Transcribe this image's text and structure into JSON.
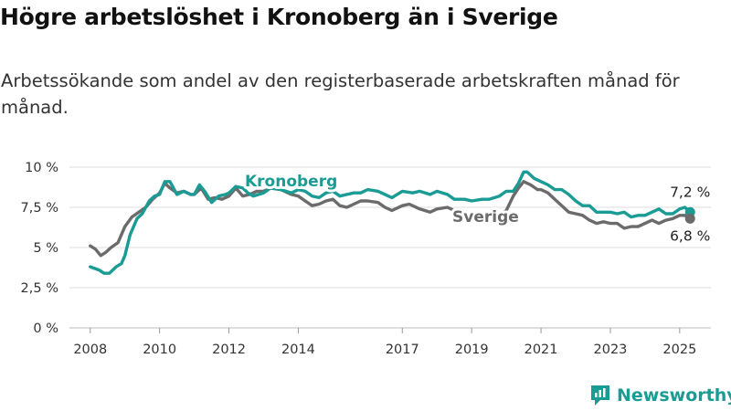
{
  "title": "Högre arbetslöshet i Kronoberg än i Sverige",
  "subtitle": "Arbetssökande som andel av den registerbaserade arbetskraften månad för månad.",
  "logo": {
    "text": "Newsworthy",
    "icon": "newsworthy-logo-icon"
  },
  "colors": {
    "kronoberg": "#1a9b94",
    "sverige": "#6b6b6b",
    "grid": "#dddddd"
  },
  "chart_data": {
    "type": "line",
    "ylim": [
      0,
      10
    ],
    "xlim": [
      2007.4,
      2025.9
    ],
    "y_ticks": [
      {
        "value": 0,
        "label": "0 %"
      },
      {
        "value": 2.5,
        "label": "2,5 %"
      },
      {
        "value": 5,
        "label": "5 %"
      },
      {
        "value": 7.5,
        "label": "7,5 %"
      },
      {
        "value": 10,
        "label": "10 %"
      }
    ],
    "x_ticks": [
      {
        "value": 2008,
        "label": "2008"
      },
      {
        "value": 2010,
        "label": "2010"
      },
      {
        "value": 2012,
        "label": "2012"
      },
      {
        "value": 2014,
        "label": "2014"
      },
      {
        "value": 2017,
        "label": "2017"
      },
      {
        "value": 2019,
        "label": "2019"
      },
      {
        "value": 2021,
        "label": "2021"
      },
      {
        "value": 2023,
        "label": "2023"
      },
      {
        "value": 2025,
        "label": "2025"
      }
    ],
    "grid": true,
    "series": [
      {
        "name": "Kronoberg",
        "color": "#1a9b94",
        "end_label": "7,2 %",
        "x": [
          2008.0,
          2008.25,
          2008.4,
          2008.55,
          2008.75,
          2008.9,
          2009.0,
          2009.15,
          2009.35,
          2009.5,
          2009.7,
          2009.85,
          2010.0,
          2010.15,
          2010.3,
          2010.5,
          2010.7,
          2010.9,
          2011.0,
          2011.15,
          2011.3,
          2011.5,
          2011.7,
          2011.9,
          2012.0,
          2012.2,
          2012.4,
          2012.55,
          2012.7,
          2013.0,
          2013.2,
          2013.5,
          2013.8,
          2014.0,
          2014.2,
          2014.4,
          2014.6,
          2014.8,
          2015.0,
          2015.2,
          2015.4,
          2015.6,
          2015.8,
          2016.0,
          2016.3,
          2016.5,
          2016.7,
          2017.0,
          2017.3,
          2017.5,
          2017.8,
          2018.0,
          2018.3,
          2018.5,
          2018.8,
          2019.0,
          2019.3,
          2019.5,
          2019.8,
          2020.0,
          2020.2,
          2020.35,
          2020.5,
          2020.6,
          2020.8,
          2021.0,
          2021.2,
          2021.4,
          2021.6,
          2021.8,
          2022.0,
          2022.2,
          2022.4,
          2022.6,
          2022.8,
          2023.0,
          2023.2,
          2023.4,
          2023.6,
          2023.8,
          2024.0,
          2024.2,
          2024.4,
          2024.6,
          2024.8,
          2025.0,
          2025.15,
          2025.3
        ],
        "y": [
          3.8,
          3.6,
          3.4,
          3.4,
          3.8,
          4.0,
          4.5,
          5.8,
          6.8,
          7.1,
          7.9,
          8.2,
          8.3,
          9.1,
          9.1,
          8.3,
          8.5,
          8.3,
          8.3,
          8.9,
          8.5,
          7.8,
          8.2,
          8.3,
          8.4,
          8.8,
          8.7,
          8.4,
          8.2,
          8.4,
          8.7,
          8.6,
          8.4,
          8.6,
          8.5,
          8.2,
          8.1,
          8.4,
          8.5,
          8.2,
          8.3,
          8.4,
          8.4,
          8.6,
          8.5,
          8.3,
          8.1,
          8.5,
          8.4,
          8.5,
          8.3,
          8.5,
          8.3,
          8.0,
          8.0,
          7.9,
          8.0,
          8.0,
          8.2,
          8.5,
          8.5,
          9.0,
          9.7,
          9.7,
          9.3,
          9.1,
          8.9,
          8.6,
          8.6,
          8.3,
          7.9,
          7.6,
          7.6,
          7.2,
          7.2,
          7.2,
          7.1,
          7.2,
          6.9,
          7.0,
          7.0,
          7.2,
          7.4,
          7.1,
          7.1,
          7.4,
          7.5,
          7.2
        ]
      },
      {
        "name": "Sverige",
        "color": "#6b6b6b",
        "end_label": "6,8 %",
        "x": [
          2008.0,
          2008.15,
          2008.3,
          2008.45,
          2008.6,
          2008.8,
          2009.0,
          2009.2,
          2009.4,
          2009.6,
          2009.8,
          2010.0,
          2010.15,
          2010.3,
          2010.5,
          2010.7,
          2010.9,
          2011.0,
          2011.2,
          2011.4,
          2011.6,
          2011.8,
          2012.0,
          2012.2,
          2012.4,
          2012.6,
          2012.8,
          2013.0,
          2013.2,
          2013.5,
          2013.8,
          2014.0,
          2014.2,
          2014.4,
          2014.6,
          2014.8,
          2015.0,
          2015.2,
          2015.4,
          2015.6,
          2015.8,
          2016.0,
          2016.3,
          2016.5,
          2016.7,
          2017.0,
          2017.2,
          2017.5,
          2017.8,
          2018.0,
          2018.3,
          2018.5,
          2018.8,
          2019.0,
          2019.3,
          2019.6,
          2019.8,
          2020.0,
          2020.2,
          2020.35,
          2020.5,
          2020.7,
          2020.9,
          2021.0,
          2021.2,
          2021.4,
          2021.6,
          2021.8,
          2022.0,
          2022.2,
          2022.4,
          2022.6,
          2022.8,
          2023.0,
          2023.2,
          2023.4,
          2023.6,
          2023.8,
          2024.0,
          2024.2,
          2024.4,
          2024.6,
          2024.8,
          2025.0,
          2025.15,
          2025.3
        ],
        "y": [
          5.1,
          4.9,
          4.5,
          4.7,
          5.0,
          5.3,
          6.3,
          6.9,
          7.2,
          7.5,
          8.0,
          8.4,
          9.0,
          8.7,
          8.4,
          8.5,
          8.3,
          8.3,
          8.7,
          8.0,
          8.1,
          8.0,
          8.2,
          8.7,
          8.2,
          8.3,
          8.5,
          8.5,
          8.7,
          8.6,
          8.3,
          8.2,
          7.9,
          7.6,
          7.7,
          7.9,
          8.0,
          7.6,
          7.5,
          7.7,
          7.9,
          7.9,
          7.8,
          7.5,
          7.3,
          7.6,
          7.7,
          7.4,
          7.2,
          7.4,
          7.5,
          7.3,
          6.9,
          6.8,
          6.9,
          6.9,
          7.0,
          7.3,
          8.2,
          8.7,
          9.1,
          8.9,
          8.6,
          8.6,
          8.4,
          8.0,
          7.6,
          7.2,
          7.1,
          7.0,
          6.7,
          6.5,
          6.6,
          6.5,
          6.5,
          6.2,
          6.3,
          6.3,
          6.5,
          6.7,
          6.5,
          6.7,
          6.8,
          7.0,
          7.0,
          6.8
        ]
      }
    ]
  }
}
